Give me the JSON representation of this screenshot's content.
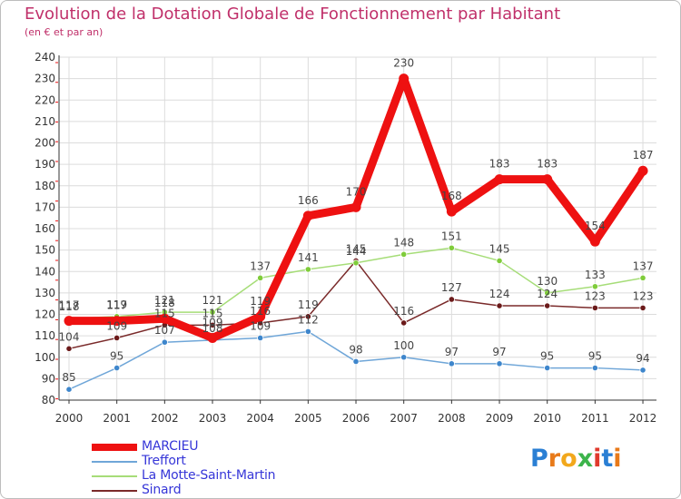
{
  "title": "Evolution de la Dotation Globale de Fonctionnement par Habitant",
  "subtitle": "(en € et par an)",
  "logo": {
    "letters": [
      "P",
      "r",
      "o",
      "x",
      "i",
      "t",
      "i"
    ],
    "colors": [
      "#2a7fd4",
      "#e87a1a",
      "#f2a81c",
      "#3cb44b",
      "#e03a2c",
      "#2a7fd4",
      "#e87a1a"
    ]
  },
  "chart_data": {
    "type": "line",
    "title": "Evolution de la Dotation Globale de Fonctionnement par Habitant",
    "ylabel": "(en € et par an)",
    "xlabel": "",
    "ylim": [
      80,
      240
    ],
    "yticks": [
      80,
      90,
      100,
      110,
      120,
      130,
      140,
      150,
      160,
      170,
      180,
      190,
      200,
      210,
      220,
      230,
      240
    ],
    "categories": [
      "2000",
      "2001",
      "2002",
      "2003",
      "2004",
      "2005",
      "2006",
      "2007",
      "2008",
      "2009",
      "2010",
      "2011",
      "2012"
    ],
    "grid": true,
    "legend_position": "bottom-left",
    "series": [
      {
        "name": "Treffort",
        "color": "#6fa6d8",
        "marker_color": "#3e86cc",
        "values": [
          85,
          95,
          107,
          108,
          109,
          112,
          98,
          100,
          97,
          97,
          95,
          95,
          94
        ]
      },
      {
        "name": "Sinard",
        "color": "#7a2a2a",
        "marker_color": "#6b1a1a",
        "values": [
          104,
          109,
          115,
          115,
          116,
          119,
          145,
          116,
          127,
          124,
          124,
          123,
          123
        ]
      },
      {
        "name": "La Motte-Saint-Martin",
        "color": "#a6dd78",
        "marker_color": "#7fcc3a",
        "values": [
          118,
          119,
          121,
          121,
          137,
          141,
          144,
          148,
          151,
          145,
          130,
          133,
          137
        ]
      },
      {
        "name": "MARCIEU",
        "color": "#ee1111",
        "marker_color": "#ee1111",
        "values": [
          117,
          117,
          118,
          109,
          119,
          166,
          170,
          230,
          168,
          183,
          183,
          154,
          187
        ]
      }
    ],
    "legend_order": [
      "MARCIEU",
      "Treffort",
      "La Motte-Saint-Martin",
      "Sinard"
    ]
  }
}
